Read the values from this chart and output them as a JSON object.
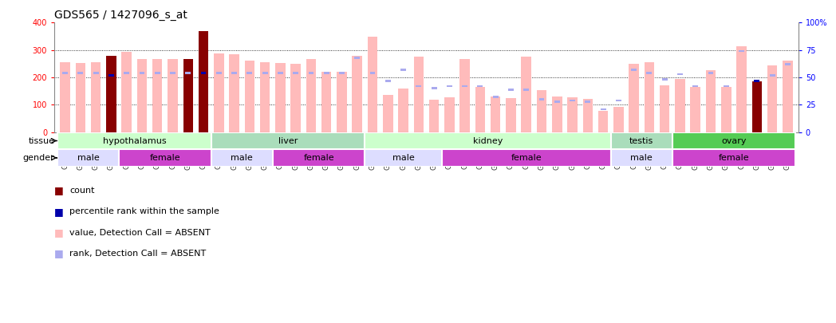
{
  "title": "GDS565 / 1427096_s_at",
  "samples": [
    "GSM19215",
    "GSM19216",
    "GSM19217",
    "GSM19218",
    "GSM19219",
    "GSM19220",
    "GSM19221",
    "GSM19222",
    "GSM19223",
    "GSM19224",
    "GSM19225",
    "GSM19226",
    "GSM19227",
    "GSM19228",
    "GSM19229",
    "GSM19230",
    "GSM19231",
    "GSM19232",
    "GSM19233",
    "GSM19234",
    "GSM19235",
    "GSM19236",
    "GSM19237",
    "GSM19238",
    "GSM19239",
    "GSM19240",
    "GSM19241",
    "GSM19242",
    "GSM19243",
    "GSM19244",
    "GSM19245",
    "GSM19246",
    "GSM19247",
    "GSM19248",
    "GSM19249",
    "GSM19250",
    "GSM19251",
    "GSM19252",
    "GSM19253",
    "GSM19254",
    "GSM19255",
    "GSM19256",
    "GSM19257",
    "GSM19258",
    "GSM19259",
    "GSM19260",
    "GSM19261",
    "GSM19262"
  ],
  "values": [
    255,
    252,
    255,
    278,
    293,
    268,
    268,
    268,
    268,
    370,
    288,
    285,
    260,
    256,
    252,
    250,
    268,
    220,
    222,
    278,
    350,
    135,
    160,
    275,
    120,
    127,
    268,
    165,
    130,
    125,
    275,
    155,
    130,
    127,
    123,
    78,
    93,
    250,
    255,
    170,
    195,
    165,
    225,
    165,
    313,
    187,
    245,
    262
  ],
  "ranks_pct": [
    54,
    54,
    54,
    52,
    54,
    54,
    54,
    54,
    54,
    54,
    54,
    54,
    54,
    54,
    54,
    54,
    54,
    54,
    54,
    68,
    54,
    47,
    57,
    42,
    40,
    42,
    42,
    42,
    32,
    39,
    39,
    30,
    28,
    29,
    28,
    21,
    29,
    57,
    54,
    48,
    53,
    42,
    54,
    42,
    74,
    47,
    52,
    62
  ],
  "value_is_absent": [
    false,
    false,
    false,
    false,
    false,
    false,
    false,
    false,
    false,
    false,
    false,
    false,
    false,
    false,
    false,
    false,
    false,
    false,
    false,
    false,
    false,
    true,
    true,
    false,
    true,
    true,
    false,
    true,
    true,
    true,
    false,
    true,
    true,
    true,
    true,
    true,
    true,
    false,
    false,
    false,
    false,
    false,
    false,
    false,
    false,
    false,
    false,
    false
  ],
  "dark_red_samples": [
    "GSM19218",
    "GSM19223",
    "GSM19224",
    "GSM19260"
  ],
  "dark_blue_samples": [
    "GSM19218",
    "GSM19224",
    "GSM19260"
  ],
  "tissue_groups": [
    {
      "label": "hypothalamus",
      "start": 0,
      "end": 10,
      "color": "#ccffcc"
    },
    {
      "label": "liver",
      "start": 10,
      "end": 20,
      "color": "#aaeebb"
    },
    {
      "label": "kidney",
      "start": 20,
      "end": 36,
      "color": "#ccffcc"
    },
    {
      "label": "testis",
      "start": 36,
      "end": 40,
      "color": "#aaeebb"
    },
    {
      "label": "ovary",
      "start": 40,
      "end": 48,
      "color": "#55dd55"
    }
  ],
  "gender_groups": [
    {
      "label": "male",
      "start": 0,
      "end": 4,
      "color": "#ddddff"
    },
    {
      "label": "female",
      "start": 4,
      "end": 10,
      "color": "#dd44dd"
    },
    {
      "label": "male",
      "start": 10,
      "end": 14,
      "color": "#ddddff"
    },
    {
      "label": "female",
      "start": 14,
      "end": 20,
      "color": "#dd44dd"
    },
    {
      "label": "male",
      "start": 20,
      "end": 25,
      "color": "#ddddff"
    },
    {
      "label": "female",
      "start": 25,
      "end": 36,
      "color": "#dd44dd"
    },
    {
      "label": "male",
      "start": 36,
      "end": 40,
      "color": "#ddddff"
    },
    {
      "label": "female",
      "start": 40,
      "end": 48,
      "color": "#dd44dd"
    }
  ],
  "ylim_left": [
    0,
    400
  ],
  "ylim_right": [
    0,
    100
  ],
  "yticks_left": [
    0,
    100,
    200,
    300,
    400
  ],
  "yticks_right": [
    0,
    25,
    50,
    75,
    100
  ],
  "bar_color_normal": "#ffbbbb",
  "bar_color_dark_red": "#880000",
  "rank_color_normal": "#aaaaee",
  "rank_color_dark_blue": "#0000aa",
  "grid_color": "black",
  "bg_color": "white",
  "title_fontsize": 10,
  "axis_fontsize": 6,
  "label_fontsize": 8,
  "legend_fontsize": 8
}
